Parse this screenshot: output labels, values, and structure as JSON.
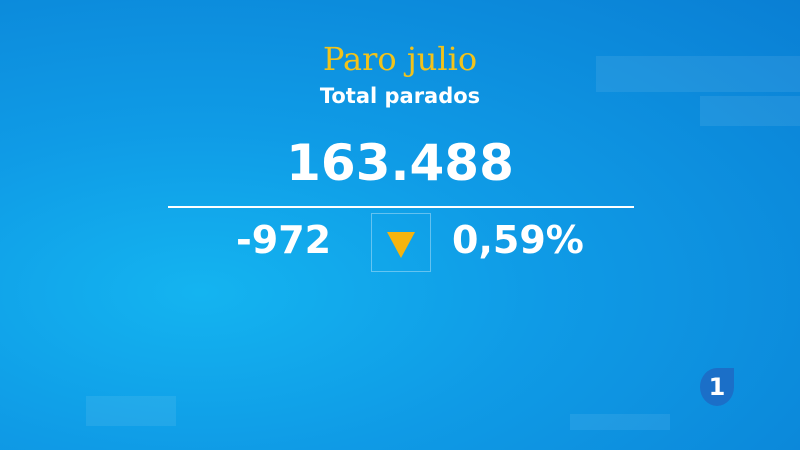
{
  "header": {
    "title": "Paro julio",
    "subtitle": "Total parados"
  },
  "figure": {
    "total": "163.488",
    "change": "-972",
    "percent": "0,59%"
  },
  "logo": {
    "label": "1"
  }
}
